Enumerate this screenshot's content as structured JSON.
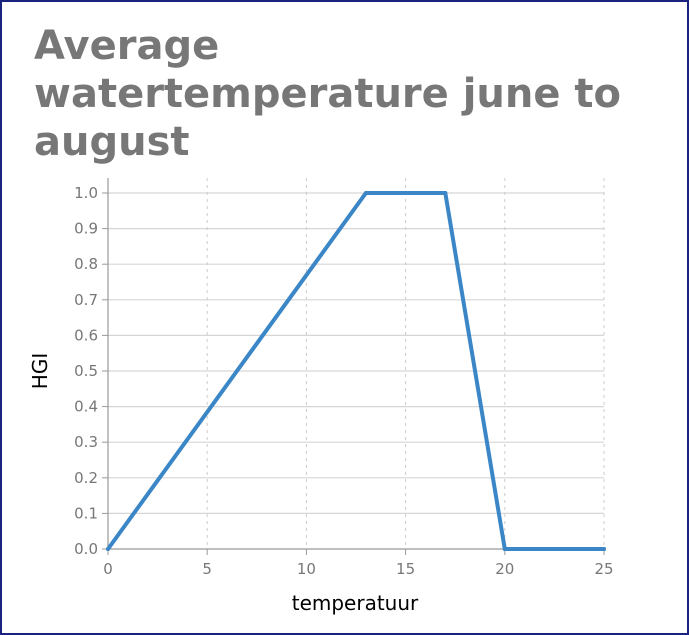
{
  "chart_data": {
    "type": "line",
    "title": "Average watertemperature june to august",
    "xlabel": "temperatuur",
    "ylabel": "HGI",
    "xlim": [
      0,
      25
    ],
    "ylim": [
      0,
      1.0
    ],
    "xticks": [
      "0",
      "5",
      "10",
      "15",
      "20",
      "25"
    ],
    "yticks": [
      "0.0",
      "0.1",
      "0.2",
      "0.3",
      "0.4",
      "0.5",
      "0.6",
      "0.7",
      "0.8",
      "0.9",
      "1.0"
    ],
    "grid": true,
    "series": [
      {
        "x": [
          0,
          13,
          17,
          20,
          25
        ],
        "y": [
          0,
          1.0,
          1.0,
          0,
          0
        ]
      }
    ],
    "colors": {
      "line": "#3b86c6",
      "grid_y": "#d6d6d6",
      "grid_x": "#cccccc",
      "axis": "#999999",
      "title": "#777777"
    }
  }
}
